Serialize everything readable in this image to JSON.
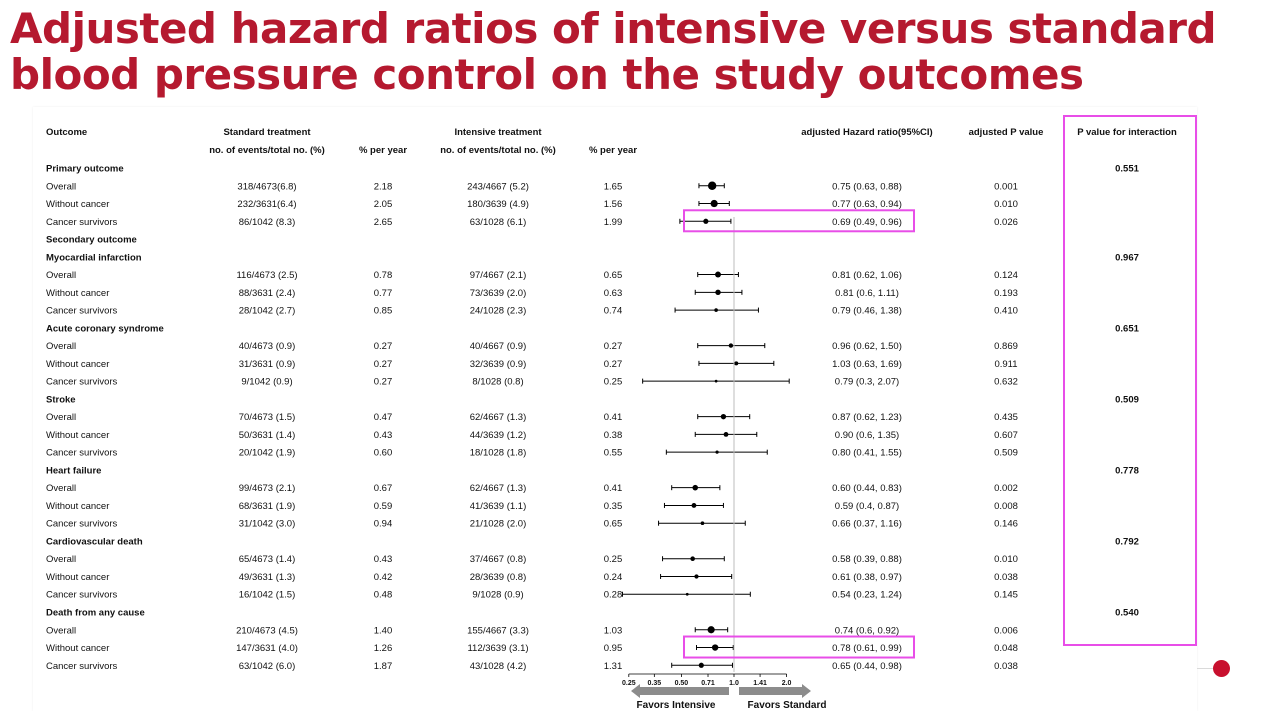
{
  "slide": {
    "title": "Adjusted hazard ratios of intensive versus standard blood pressure control on the study outcomes"
  },
  "table": {
    "headers": {
      "outcome": "Outcome",
      "standard_top": "Standard treatment",
      "standard_sub": "no. of events/total no. (%)",
      "std_rate": "% per year",
      "intensive_top": "Intensive treatment",
      "intensive_sub": "no. of events/total no. (%)",
      "int_rate": "% per year",
      "hr": "adjusted Hazard ratio(95%CI)",
      "p": "adjusted P value",
      "pint": "P value for interaction"
    }
  },
  "chart_data": {
    "type": "forest",
    "x_scale": "log",
    "reference_line": 1.0,
    "xlim": [
      0.25,
      2.0
    ],
    "x_ticks": [
      "0.25",
      "0.35",
      "0.50",
      "0.71",
      "1.0",
      "1.41",
      "2.0"
    ],
    "favors_left": "Favors Intensive",
    "favors_right": "Favors Standard",
    "rows": [
      {
        "type": "header",
        "label": "Primary outcome",
        "pint": "0.551"
      },
      {
        "type": "data",
        "label": "Overall",
        "std": "318/4673(6.8)",
        "std_rate": "2.18",
        "int": "243/4667 (5.2)",
        "int_rate": "1.65",
        "hr_text": "0.75 (0.63, 0.88)",
        "p": "0.001",
        "hr": 0.75,
        "lo": 0.63,
        "hi": 0.88,
        "size": 4.2
      },
      {
        "type": "data",
        "label": "Without cancer",
        "std": "232/3631(6.4)",
        "std_rate": "2.05",
        "int": "180/3639 (4.9)",
        "int_rate": "1.56",
        "hr_text": "0.77 (0.63, 0.94)",
        "p": "0.010",
        "hr": 0.77,
        "lo": 0.63,
        "hi": 0.94,
        "size": 3.6
      },
      {
        "type": "data",
        "label": "Cancer survivors",
        "std": "86/1042 (8.3)",
        "std_rate": "2.65",
        "int": "63/1028 (6.1)",
        "int_rate": "1.99",
        "hr_text": "0.69 (0.49, 0.96)",
        "p": "0.026",
        "hr": 0.69,
        "lo": 0.49,
        "hi": 0.96,
        "size": 2.6
      },
      {
        "type": "header",
        "label": "Secondary outcome",
        "pint": ""
      },
      {
        "type": "header",
        "label": "Myocardial infarction",
        "pint": "0.967"
      },
      {
        "type": "data",
        "label": "Overall",
        "std": "116/4673 (2.5)",
        "std_rate": "0.78",
        "int": "97/4667 (2.1)",
        "int_rate": "0.65",
        "hr_text": "0.81 (0.62, 1.06)",
        "p": "0.124",
        "hr": 0.81,
        "lo": 0.62,
        "hi": 1.06,
        "size": 3.0
      },
      {
        "type": "data",
        "label": "Without cancer",
        "std": "88/3631 (2.4)",
        "std_rate": "0.77",
        "int": "73/3639 (2.0)",
        "int_rate": "0.63",
        "hr_text": "0.81 (0.6, 1.11)",
        "p": "0.193",
        "hr": 0.81,
        "lo": 0.6,
        "hi": 1.11,
        "size": 2.7
      },
      {
        "type": "data",
        "label": "Cancer survivors",
        "std": "28/1042 (2.7)",
        "std_rate": "0.85",
        "int": "24/1028 (2.3)",
        "int_rate": "0.74",
        "hr_text": "0.79 (0.46, 1.38)",
        "p": "0.410",
        "hr": 0.79,
        "lo": 0.46,
        "hi": 1.38,
        "size": 1.8
      },
      {
        "type": "header",
        "label": "Acute coronary syndrome",
        "pint": "0.651"
      },
      {
        "type": "data",
        "label": "Overall",
        "std": "40/4673 (0.9)",
        "std_rate": "0.27",
        "int": "40/4667 (0.9)",
        "int_rate": "0.27",
        "hr_text": "0.96 (0.62, 1.50)",
        "p": "0.869",
        "hr": 0.96,
        "lo": 0.62,
        "hi": 1.5,
        "size": 2.2
      },
      {
        "type": "data",
        "label": "Without cancer",
        "std": "31/3631 (0.9)",
        "std_rate": "0.27",
        "int": "32/3639 (0.9)",
        "int_rate": "0.27",
        "hr_text": "1.03 (0.63, 1.69)",
        "p": "0.911",
        "hr": 1.03,
        "lo": 0.63,
        "hi": 1.69,
        "size": 2.0
      },
      {
        "type": "data",
        "label": "Cancer survivors",
        "std": "9/1042 (0.9)",
        "std_rate": "0.27",
        "int": "8/1028 (0.8)",
        "int_rate": "0.25",
        "hr_text": "0.79 (0.3, 2.07)",
        "p": "0.632",
        "hr": 0.79,
        "lo": 0.3,
        "hi": 2.07,
        "size": 1.4
      },
      {
        "type": "header",
        "label": "Stroke",
        "pint": "0.509"
      },
      {
        "type": "data",
        "label": "Overall",
        "std": "70/4673 (1.5)",
        "std_rate": "0.47",
        "int": "62/4667 (1.3)",
        "int_rate": "0.41",
        "hr_text": "0.87 (0.62, 1.23)",
        "p": "0.435",
        "hr": 0.87,
        "lo": 0.62,
        "hi": 1.23,
        "size": 2.7
      },
      {
        "type": "data",
        "label": "Without cancer",
        "std": "50/3631 (1.4)",
        "std_rate": "0.43",
        "int": "44/3639 (1.2)",
        "int_rate": "0.38",
        "hr_text": "0.90 (0.6, 1.35)",
        "p": "0.607",
        "hr": 0.9,
        "lo": 0.6,
        "hi": 1.35,
        "size": 2.4
      },
      {
        "type": "data",
        "label": "Cancer survivors",
        "std": "20/1042 (1.9)",
        "std_rate": "0.60",
        "int": "18/1028 (1.8)",
        "int_rate": "0.55",
        "hr_text": "0.80 (0.41, 1.55)",
        "p": "0.509",
        "hr": 0.8,
        "lo": 0.41,
        "hi": 1.55,
        "size": 1.6
      },
      {
        "type": "header",
        "label": "Heart failure",
        "pint": "0.778"
      },
      {
        "type": "data",
        "label": "Overall",
        "std": "99/4673 (2.1)",
        "std_rate": "0.67",
        "int": "62/4667 (1.3)",
        "int_rate": "0.41",
        "hr_text": "0.60 (0.44, 0.83)",
        "p": "0.002",
        "hr": 0.6,
        "lo": 0.44,
        "hi": 0.83,
        "size": 2.8
      },
      {
        "type": "data",
        "label": "Without cancer",
        "std": "68/3631 (1.9)",
        "std_rate": "0.59",
        "int": "41/3639 (1.1)",
        "int_rate": "0.35",
        "hr_text": "0.59 (0.4, 0.87)",
        "p": "0.008",
        "hr": 0.59,
        "lo": 0.4,
        "hi": 0.87,
        "size": 2.4
      },
      {
        "type": "data",
        "label": "Cancer survivors",
        "std": "31/1042 (3.0)",
        "std_rate": "0.94",
        "int": "21/1028 (2.0)",
        "int_rate": "0.65",
        "hr_text": "0.66 (0.37, 1.16)",
        "p": "0.146",
        "hr": 0.66,
        "lo": 0.37,
        "hi": 1.16,
        "size": 1.8
      },
      {
        "type": "header",
        "label": "Cardiovascular death",
        "pint": "0.792"
      },
      {
        "type": "data",
        "label": "Overall",
        "std": "65/4673 (1.4)",
        "std_rate": "0.43",
        "int": "37/4667 (0.8)",
        "int_rate": "0.25",
        "hr_text": "0.58 (0.39, 0.88)",
        "p": "0.010",
        "hr": 0.58,
        "lo": 0.39,
        "hi": 0.88,
        "size": 2.3
      },
      {
        "type": "data",
        "label": "Without cancer",
        "std": "49/3631 (1.3)",
        "std_rate": "0.42",
        "int": "28/3639 (0.8)",
        "int_rate": "0.24",
        "hr_text": "0.61 (0.38, 0.97)",
        "p": "0.038",
        "hr": 0.61,
        "lo": 0.38,
        "hi": 0.97,
        "size": 2.1
      },
      {
        "type": "data",
        "label": "Cancer survivors",
        "std": "16/1042 (1.5)",
        "std_rate": "0.48",
        "int": "9/1028 (0.9)",
        "int_rate": "0.28",
        "hr_text": "0.54 (0.23, 1.24)",
        "p": "0.145",
        "hr": 0.54,
        "lo": 0.23,
        "hi": 1.24,
        "size": 1.4
      },
      {
        "type": "header",
        "label": "Death from any cause",
        "pint": "0.540"
      },
      {
        "type": "data",
        "label": "Overall",
        "std": "210/4673 (4.5)",
        "std_rate": "1.40",
        "int": "155/4667 (3.3)",
        "int_rate": "1.03",
        "hr_text": "0.74 (0.6, 0.92)",
        "p": "0.006",
        "hr": 0.74,
        "lo": 0.6,
        "hi": 0.92,
        "size": 3.6
      },
      {
        "type": "data",
        "label": "Without cancer",
        "std": "147/3631 (4.0)",
        "std_rate": "1.26",
        "int": "112/3639 (3.1)",
        "int_rate": "0.95",
        "hr_text": "0.78 (0.61, 0.99)",
        "p": "0.048",
        "hr": 0.78,
        "lo": 0.61,
        "hi": 0.99,
        "size": 3.2
      },
      {
        "type": "data",
        "label": "Cancer survivors",
        "std": "63/1042 (6.0)",
        "std_rate": "1.87",
        "int": "43/1028 (4.2)",
        "int_rate": "1.31",
        "hr_text": "0.65 (0.44, 0.98)",
        "p": "0.038",
        "hr": 0.65,
        "lo": 0.44,
        "hi": 0.98,
        "size": 2.6
      }
    ],
    "highlighted_rows": [
      3,
      27
    ],
    "highlighted_column": "P value for interaction"
  },
  "colors": {
    "title": "#b5192f",
    "highlight": "#e84ee8",
    "accent_dot": "#c8102e",
    "marker": "#000000",
    "ref_line": "#bdbdbd"
  }
}
